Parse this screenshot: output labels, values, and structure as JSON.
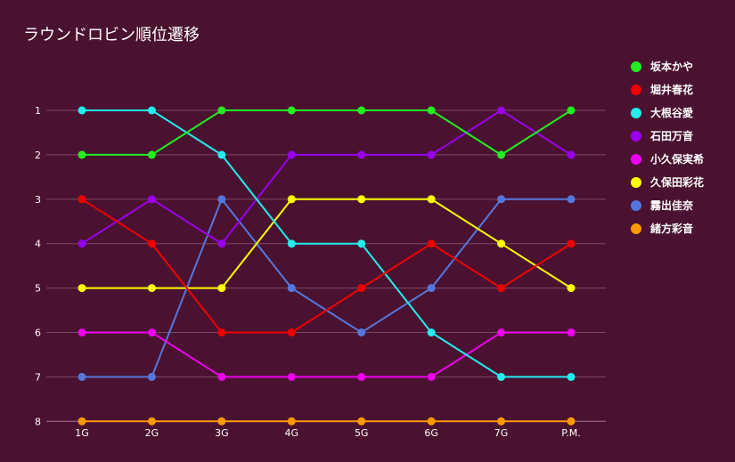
{
  "chart_data": {
    "type": "line",
    "title": "ラウンドロビン順位遷移",
    "categories": [
      "1G",
      "2G",
      "3G",
      "4G",
      "5G",
      "6G",
      "7G",
      "P.M."
    ],
    "yticks": [
      1,
      2,
      3,
      4,
      5,
      6,
      7,
      8
    ],
    "ylim": [
      8,
      1
    ],
    "y_reversed": true,
    "grid": true,
    "legend_position": "right",
    "series": [
      {
        "name": "坂本かや",
        "color": "#22ee22",
        "values": [
          2,
          2,
          1,
          1,
          1,
          1,
          2,
          1
        ]
      },
      {
        "name": "堀井春花",
        "color": "#ee0000",
        "values": [
          3,
          4,
          6,
          6,
          5,
          4,
          5,
          4
        ]
      },
      {
        "name": "大根谷愛",
        "color": "#22eeee",
        "values": [
          1,
          1,
          2,
          4,
          4,
          6,
          7,
          7
        ]
      },
      {
        "name": "石田万音",
        "color": "#9900ee",
        "values": [
          4,
          3,
          4,
          2,
          2,
          2,
          1,
          2
        ]
      },
      {
        "name": "小久保実希",
        "color": "#ee00ee",
        "values": [
          6,
          6,
          7,
          7,
          7,
          7,
          6,
          6
        ]
      },
      {
        "name": "久保田彩花",
        "color": "#ffff00",
        "values": [
          5,
          5,
          5,
          3,
          3,
          3,
          4,
          5
        ]
      },
      {
        "name": "霧出佳奈",
        "color": "#5577dd",
        "values": [
          7,
          7,
          3,
          5,
          6,
          5,
          3,
          3
        ]
      },
      {
        "name": "緒方彩音",
        "color": "#ff9900",
        "values": [
          8,
          8,
          8,
          8,
          8,
          8,
          8,
          8
        ]
      }
    ]
  }
}
